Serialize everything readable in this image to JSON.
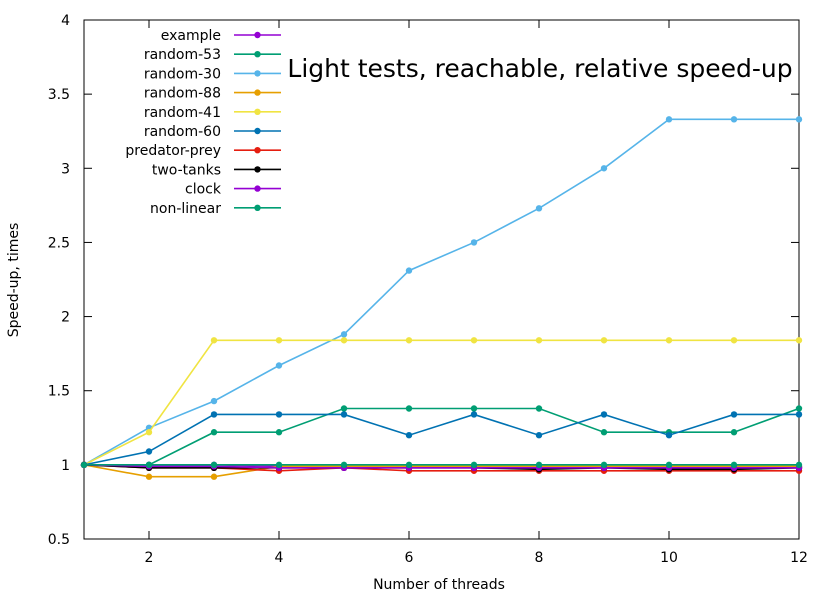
{
  "chart_data": {
    "type": "line",
    "title": "Light tests, reachable, relative speed-up",
    "xlabel": "Number of threads",
    "ylabel": "Speed-up, times",
    "xlim": [
      1,
      12
    ],
    "ylim": [
      0.5,
      4
    ],
    "xticks": [
      2,
      4,
      6,
      8,
      10,
      12
    ],
    "yticks": [
      0.5,
      1,
      1.5,
      2,
      2.5,
      3,
      3.5,
      4
    ],
    "x": [
      1,
      2,
      3,
      4,
      5,
      6,
      7,
      8,
      9,
      10,
      11,
      12
    ],
    "grid": false,
    "legend_position": "top-left",
    "series": [
      {
        "name": "example",
        "color": "#9400D3",
        "values": [
          1,
          1,
          1,
          0.99,
          0.99,
          0.99,
          0.99,
          0.99,
          0.99,
          0.99,
          0.99,
          0.99
        ]
      },
      {
        "name": "random-53",
        "color": "#009E73",
        "values": [
          1,
          1,
          1.22,
          1.22,
          1.38,
          1.38,
          1.38,
          1.38,
          1.22,
          1.22,
          1.22,
          1.38
        ]
      },
      {
        "name": "random-30",
        "color": "#56B4E9",
        "values": [
          1,
          1.25,
          1.43,
          1.67,
          1.88,
          2.31,
          2.5,
          2.73,
          3.0,
          3.33,
          3.33,
          3.33
        ]
      },
      {
        "name": "random-88",
        "color": "#E69F00",
        "values": [
          1,
          0.92,
          0.92,
          0.99,
          0.99,
          0.99,
          0.99,
          0.99,
          0.99,
          0.99,
          0.99,
          0.99
        ]
      },
      {
        "name": "random-41",
        "color": "#F0E442",
        "values": [
          1,
          1.22,
          1.84,
          1.84,
          1.84,
          1.84,
          1.84,
          1.84,
          1.84,
          1.84,
          1.84,
          1.84
        ]
      },
      {
        "name": "random-60",
        "color": "#0072B2",
        "values": [
          1,
          1.09,
          1.34,
          1.34,
          1.34,
          1.2,
          1.34,
          1.2,
          1.34,
          1.2,
          1.34,
          1.34
        ]
      },
      {
        "name": "predator-prey",
        "color": "#E51E10",
        "values": [
          1,
          0.98,
          0.98,
          0.96,
          0.98,
          0.96,
          0.96,
          0.96,
          0.96,
          0.96,
          0.96,
          0.96
        ]
      },
      {
        "name": "two-tanks",
        "color": "#000000",
        "values": [
          1,
          0.98,
          0.98,
          0.98,
          0.98,
          0.98,
          0.98,
          0.97,
          0.98,
          0.97,
          0.97,
          0.98
        ]
      },
      {
        "name": "clock",
        "color": "#9400D3",
        "values": [
          1,
          0.99,
          0.99,
          0.98,
          0.98,
          0.98,
          0.98,
          0.98,
          0.98,
          0.98,
          0.98,
          0.98
        ]
      },
      {
        "name": "non-linear",
        "color": "#009E73",
        "values": [
          1,
          1,
          1,
          1,
          1,
          1,
          1,
          1,
          1,
          1,
          1,
          1
        ]
      }
    ]
  }
}
